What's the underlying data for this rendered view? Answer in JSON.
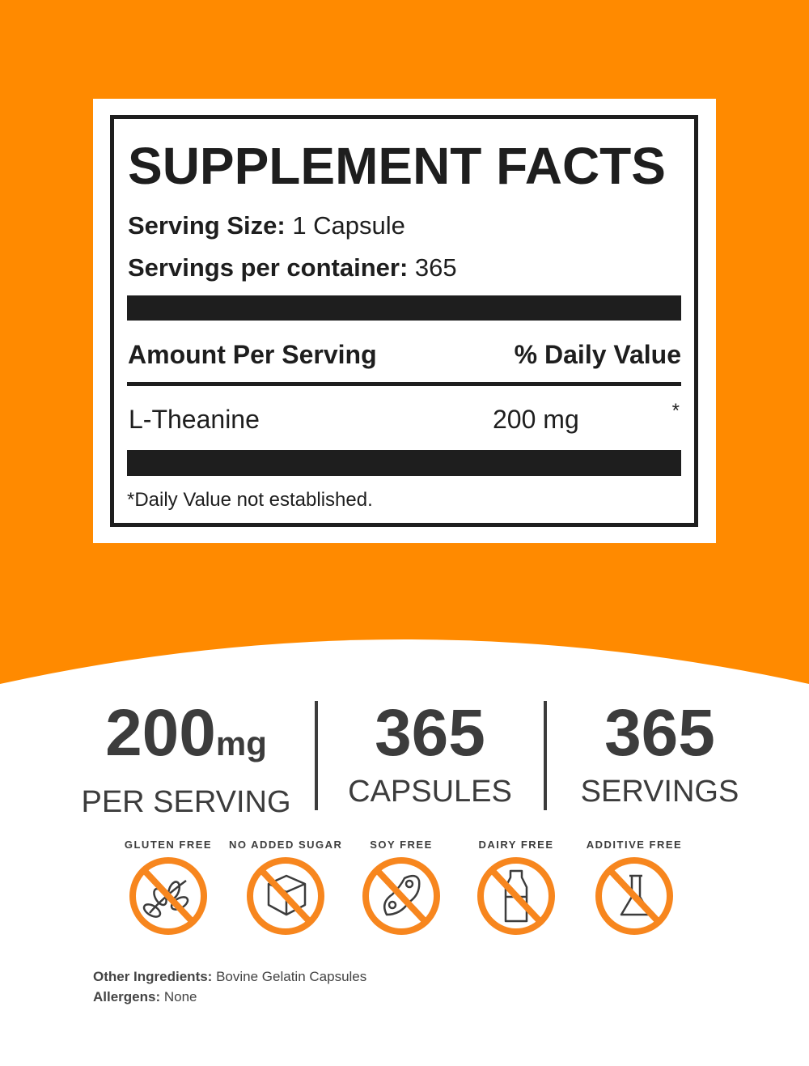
{
  "colors": {
    "orange": "#FF8A00",
    "icon_orange": "#F7861E",
    "dark": "#1e1e1e",
    "grey": "#3c3c3c"
  },
  "label": {
    "title": "SUPPLEMENT FACTS",
    "serving_size_label": "Serving Size:",
    "serving_size_value": "1 Capsule",
    "servings_label": "Servings per container:",
    "servings_value": "365",
    "amount_header": "Amount Per Serving",
    "dv_header": "% Daily Value",
    "ingredient": {
      "name": "L-Theanine",
      "amount": "200 mg",
      "dv": "*"
    },
    "footnote": "*Daily Value not established."
  },
  "stats": [
    {
      "value": "200",
      "unit": "mg",
      "label": "PER SERVING"
    },
    {
      "value": "365",
      "unit": "",
      "label": "CAPSULES"
    },
    {
      "value": "365",
      "unit": "",
      "label": "SERVINGS"
    }
  ],
  "badges": [
    {
      "text": "GLUTEN FREE",
      "icon": "wheat-icon"
    },
    {
      "text": "NO ADDED SUGAR",
      "icon": "sugar-cube-icon"
    },
    {
      "text": "SOY FREE",
      "icon": "soybean-icon"
    },
    {
      "text": "DAIRY FREE",
      "icon": "milk-bottle-icon"
    },
    {
      "text": "ADDITIVE FREE",
      "icon": "flask-icon"
    }
  ],
  "other": {
    "ingredients_label": "Other Ingredients:",
    "ingredients_value": "Bovine Gelatin Capsules",
    "allergens_label": "Allergens:",
    "allergens_value": "None"
  }
}
